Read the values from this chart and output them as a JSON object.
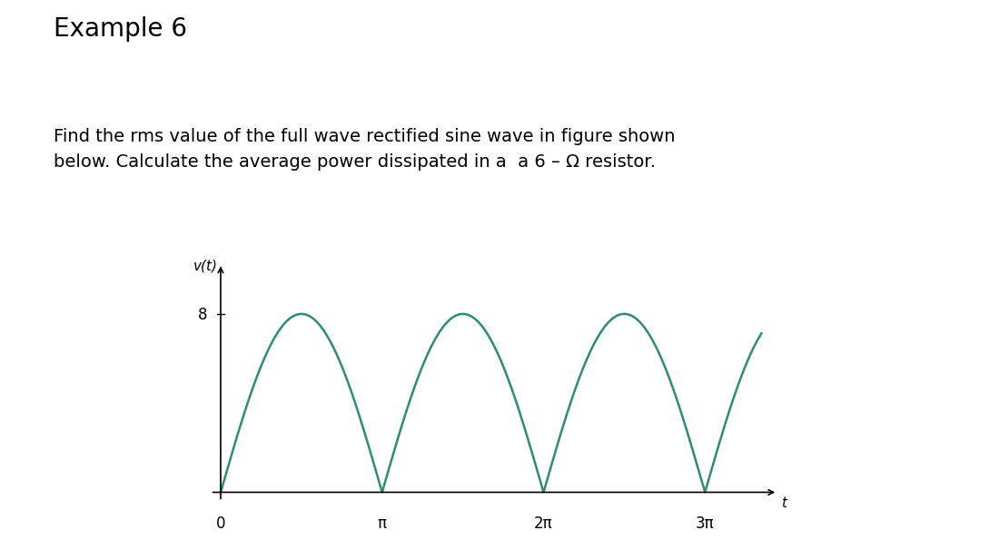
{
  "title": "Example 6",
  "description_line1": "Find the rms value of the full wave rectified sine wave in figure shown",
  "description_line2": "below. Calculate the average power dissipated in a  a 6 – Ω resistor.",
  "amplitude": 8,
  "wave_color": "#2e8b7a",
  "wave_linewidth": 1.8,
  "background_color": "#ffffff",
  "ylabel": "v(t)",
  "xlabel": "t",
  "ytick_label": "8",
  "ytick_value": 8,
  "xtick_labels": [
    "0",
    "π",
    "2π",
    "3π"
  ],
  "xtick_values": [
    0,
    3.14159265,
    6.2831853,
    9.42477796
  ],
  "title_fontsize": 20,
  "desc_fontsize": 14,
  "axis_label_fontsize": 11,
  "tick_fontsize": 12,
  "ylabel_fontsize": 11,
  "xlabel_fontsize": 11
}
